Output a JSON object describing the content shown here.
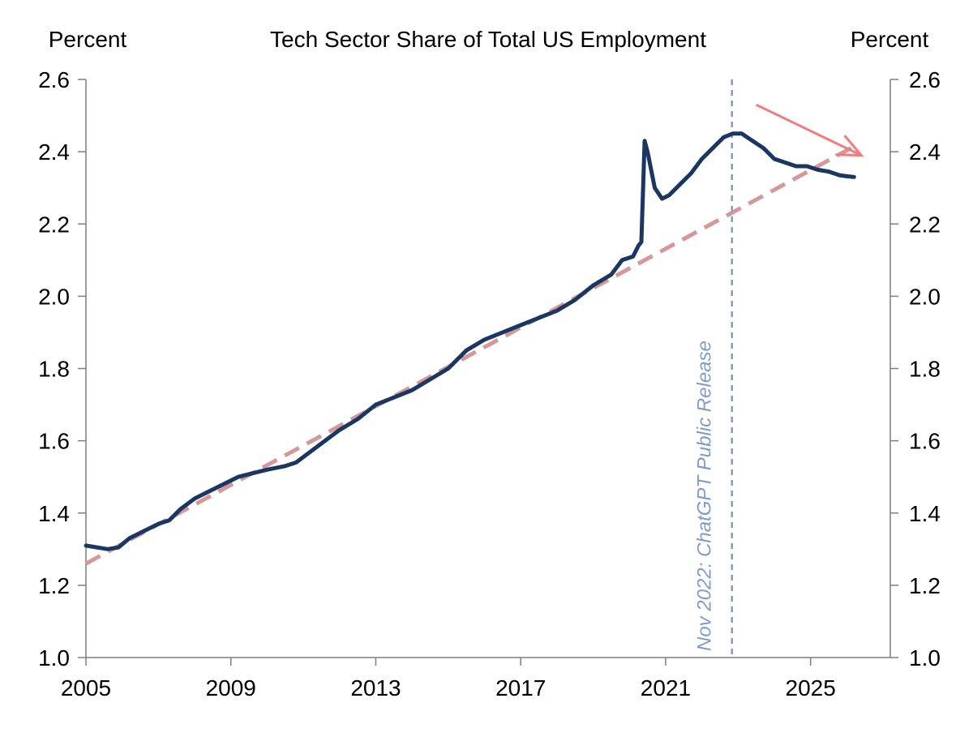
{
  "chart_data": {
    "type": "line",
    "title": "Tech Sector Share of Total US Employment",
    "ylabel_left": "Percent",
    "ylabel_right": "Percent",
    "xlim": [
      2005,
      2027.2
    ],
    "ylim": [
      1.0,
      2.6
    ],
    "x_ticks": [
      2005,
      2009,
      2013,
      2017,
      2021,
      2025
    ],
    "x_tick_labels": [
      "2005",
      "2009",
      "2013",
      "2017",
      "2021",
      "2025"
    ],
    "y_ticks": [
      1.0,
      1.2,
      1.4,
      1.6,
      1.8,
      2.0,
      2.2,
      2.4,
      2.6
    ],
    "y_tick_labels": [
      "1.0",
      "1.2",
      "1.4",
      "1.6",
      "1.8",
      "2.0",
      "2.2",
      "2.4",
      "2.6"
    ],
    "grid": false,
    "colors": {
      "series": "#1b3661",
      "trend": "#d4989a",
      "annotation": "#7f9cc9",
      "arrow": "#f07c82",
      "axis": "#7f7f7f"
    },
    "series": [
      {
        "x": [
          2005.0,
          2005.3,
          2005.6,
          2005.9,
          2006.2,
          2006.6,
          2007.0,
          2007.3,
          2007.6,
          2008.0,
          2008.4,
          2008.8,
          2009.2,
          2009.6,
          2010.0,
          2010.5,
          2010.8,
          2011.2,
          2011.6,
          2012.0,
          2012.5,
          2013.0,
          2013.5,
          2014.0,
          2014.5,
          2015.0,
          2015.5,
          2016.0,
          2016.5,
          2017.0,
          2017.5,
          2018.0,
          2018.5,
          2019.0,
          2019.5,
          2019.8,
          2020.1,
          2020.25,
          2020.33,
          2020.42,
          2020.5,
          2020.7,
          2020.9,
          2021.1,
          2021.4,
          2021.7,
          2022.0,
          2022.3,
          2022.6,
          2022.85,
          2023.1,
          2023.4,
          2023.7,
          2024.0,
          2024.3,
          2024.6,
          2024.9,
          2025.2,
          2025.5,
          2025.8,
          2026.0,
          2026.2
        ],
        "y": [
          1.31,
          1.305,
          1.3,
          1.305,
          1.33,
          1.35,
          1.37,
          1.38,
          1.41,
          1.44,
          1.46,
          1.48,
          1.5,
          1.51,
          1.52,
          1.53,
          1.54,
          1.57,
          1.6,
          1.63,
          1.66,
          1.7,
          1.72,
          1.74,
          1.77,
          1.8,
          1.85,
          1.88,
          1.9,
          1.92,
          1.94,
          1.96,
          1.99,
          2.03,
          2.06,
          2.1,
          2.11,
          2.14,
          2.15,
          2.43,
          2.4,
          2.3,
          2.27,
          2.28,
          2.31,
          2.34,
          2.38,
          2.41,
          2.44,
          2.45,
          2.45,
          2.43,
          2.41,
          2.38,
          2.37,
          2.36,
          2.36,
          2.35,
          2.345,
          2.335,
          2.332,
          2.33
        ]
      },
      {
        "type": "trend",
        "x": [
          2005.0,
          2026.3
        ],
        "y": [
          1.26,
          2.42
        ]
      }
    ],
    "annotations": [
      {
        "type": "vline",
        "x": 2022.83,
        "text": "Nov 2022: ChatGPT Public Release"
      },
      {
        "type": "arrow",
        "x": [
          2023.5,
          2026.4
        ],
        "y": [
          2.53,
          2.39
        ]
      }
    ]
  }
}
